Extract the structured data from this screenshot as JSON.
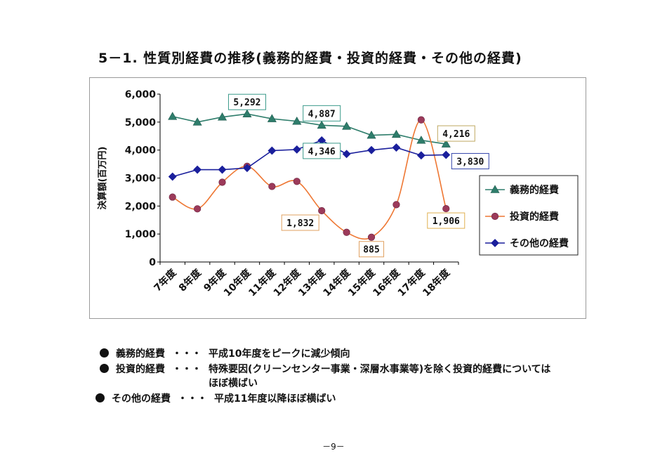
{
  "page": {
    "title": "5－1. 性質別経費の推移(義務的経費・投資的経費・その他の経費)",
    "bullets": [
      {
        "label": "義務的経費",
        "sep": "・・・",
        "lines": [
          "平成10年度をピークに減少傾向"
        ]
      },
      {
        "label": "投資的経費",
        "sep": "・・・",
        "lines": [
          "特殊要因(クリーンセンター事業・深層水事業等)を除く投資的経費については",
          "ほぼ横ばい"
        ]
      },
      {
        "label": "その他の経費",
        "sep": "・・・",
        "lines": [
          "平成11年度以降ほぼ横ばい"
        ]
      }
    ],
    "page_number": "－9－"
  },
  "chart_data": {
    "type": "line",
    "title": "",
    "xlabel": "",
    "ylabel": "決算額(百万円)",
    "ylim": [
      0,
      6000
    ],
    "yticks": [
      0,
      1000,
      2000,
      3000,
      4000,
      5000,
      6000
    ],
    "ytick_labels": [
      "0",
      "1,000",
      "2,000",
      "3,000",
      "4,000",
      "5,000",
      "6,000"
    ],
    "categories": [
      "7年度",
      "8年度",
      "9年度",
      "10年度",
      "11年度",
      "12年度",
      "13年度",
      "14年度",
      "15年度",
      "16年度",
      "17年度",
      "18年度"
    ],
    "legend_position": "right",
    "series": [
      {
        "name": "義務的経費",
        "color": "#2e7d6b",
        "marker": "triangle",
        "values": [
          5200,
          5000,
          5180,
          5292,
          5120,
          5030,
          4887,
          4850,
          4530,
          4560,
          4350,
          4216
        ]
      },
      {
        "name": "投資的経費",
        "color": "#ee7733",
        "markerColor": "#9c3a5a",
        "marker": "circle",
        "smooth": true,
        "values": [
          2320,
          1900,
          2850,
          3420,
          2700,
          2880,
          1832,
          1060,
          885,
          2050,
          5080,
          1906
        ]
      },
      {
        "name": "その他の経費",
        "color": "#1a1f9c",
        "marker": "diamond",
        "values": [
          3050,
          3300,
          3300,
          3360,
          3980,
          4020,
          4346,
          3860,
          4000,
          4090,
          3810,
          3830
        ]
      }
    ],
    "annotations": [
      {
        "text": "5,292",
        "series": 0,
        "index": 3,
        "border": "#3a9a8a"
      },
      {
        "text": "4,887",
        "series": 0,
        "index": 6,
        "border": "#3a9a8a"
      },
      {
        "text": "4,216",
        "series": 0,
        "index": 11,
        "border": "#bfa860"
      },
      {
        "text": "4,346",
        "series": 2,
        "index": 6,
        "border": "#3a9a8a"
      },
      {
        "text": "3,830",
        "series": 2,
        "index": 11,
        "border": "#3344aa"
      },
      {
        "text": "1,832",
        "series": 1,
        "index": 6,
        "border": "#e0a060"
      },
      {
        "text": "885",
        "series": 1,
        "index": 8,
        "border": "#e0a060"
      },
      {
        "text": "1,906",
        "series": 1,
        "index": 11,
        "border": "#e0b050"
      }
    ]
  }
}
